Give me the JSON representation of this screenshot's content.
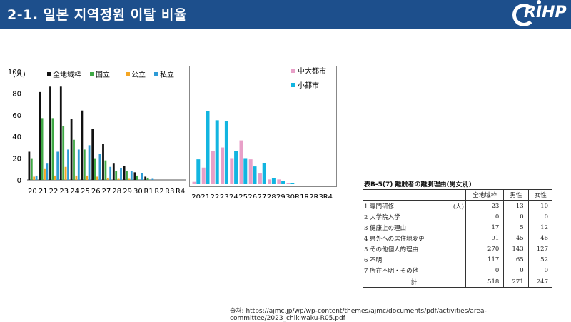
{
  "header": {
    "title": "2-1. 일본 지역정원 이탈 비율",
    "logo_text": "RIHP"
  },
  "colors": {
    "header_bg": "#1d4f8c",
    "black": "#111111",
    "green": "#3fa845",
    "orange": "#f5a623",
    "blue": "#2e9bd6",
    "pink": "#e8a0c8",
    "cyan": "#12b5e0"
  },
  "left_chart": {
    "unit": "(人)",
    "ymax": 100,
    "yticks": [
      "0",
      "20",
      "40",
      "60",
      "80",
      "100"
    ],
    "categories": [
      "20",
      "21",
      "22",
      "23",
      "24",
      "25",
      "26",
      "27",
      "28",
      "29",
      "30",
      "R1",
      "R2",
      "R3",
      "R4"
    ],
    "legend": [
      "全地域枠",
      "国立",
      "公立",
      "私立"
    ]
  },
  "right_chart": {
    "categories": [
      "20",
      "21",
      "22",
      "23",
      "24",
      "25",
      "26",
      "27",
      "28",
      "29",
      "30",
      "R1",
      "R2",
      "R3",
      "R4"
    ],
    "legend": [
      "中大都市",
      "小都市"
    ]
  },
  "chart_data": [
    {
      "type": "bar",
      "categories": [
        "20",
        "21",
        "22",
        "23",
        "24",
        "25",
        "26",
        "27",
        "28",
        "29",
        "30",
        "R1",
        "R2",
        "R3",
        "R4"
      ],
      "ylim": [
        0,
        100
      ],
      "ylabel": "(人)",
      "series": [
        {
          "name": "全地域枠",
          "color": "#111111",
          "values": [
            26,
            81,
            86,
            86,
            56,
            64,
            47,
            33,
            15,
            13,
            7,
            3,
            0,
            0,
            0
          ]
        },
        {
          "name": "国立",
          "color": "#3fa845",
          "values": [
            20,
            57,
            57,
            50,
            37,
            28,
            20,
            18,
            8,
            8,
            4,
            2,
            0,
            0,
            0
          ]
        },
        {
          "name": "公立",
          "color": "#f5a623",
          "values": [
            3,
            10,
            4,
            12,
            4,
            4,
            3,
            2,
            1,
            1,
            0,
            0,
            0,
            0,
            0
          ]
        },
        {
          "name": "私立",
          "color": "#2e9bd6",
          "values": [
            4,
            15,
            26,
            28,
            28,
            32,
            24,
            12,
            11,
            8,
            6,
            1,
            0,
            0,
            0
          ]
        }
      ]
    },
    {
      "type": "bar",
      "categories": [
        "20",
        "21",
        "22",
        "23",
        "24",
        "25",
        "26",
        "27",
        "28",
        "29",
        "30",
        "R1",
        "R2",
        "R3",
        "R4"
      ],
      "ylim": [
        0,
        100
      ],
      "series": [
        {
          "name": "中大都市",
          "color": "#e8a0c8",
          "values": [
            2,
            14,
            28,
            31,
            22,
            37,
            21,
            9,
            4,
            4,
            1,
            0,
            0,
            0,
            0
          ]
        },
        {
          "name": "小都市",
          "color": "#12b5e0",
          "values": [
            21,
            62,
            54,
            53,
            28,
            22,
            15,
            18,
            5,
            3,
            1,
            0,
            0,
            0,
            0
          ]
        }
      ]
    }
  ],
  "table": {
    "title": "表B-5(7) 離脱者の離脱理由(男女別)",
    "headers": [
      "全地域枠",
      "男性",
      "女性"
    ],
    "unit": "(人)",
    "rows": [
      {
        "label": "1 専門研修",
        "values": [
          "23",
          "13",
          "10"
        ]
      },
      {
        "label": "2 大学院入学",
        "values": [
          "0",
          "0",
          "0"
        ]
      },
      {
        "label": "3 健康上の理由",
        "values": [
          "17",
          "5",
          "12"
        ]
      },
      {
        "label": "4 県外への居住地変更",
        "values": [
          "91",
          "45",
          "46"
        ]
      },
      {
        "label": "5 その他個人的理由",
        "values": [
          "270",
          "143",
          "127"
        ]
      },
      {
        "label": "6 不明",
        "values": [
          "117",
          "65",
          "52"
        ]
      },
      {
        "label": "7 所在不明・その他",
        "values": [
          "0",
          "0",
          "0"
        ]
      }
    ],
    "total": {
      "label": "計",
      "values": [
        "518",
        "271",
        "247"
      ]
    }
  },
  "source": "출처: https://ajmc.jp/wp/wp-content/themes/ajmc/documents/pdf/activities/area-committee/2023_chikiwaku-R05.pdf"
}
